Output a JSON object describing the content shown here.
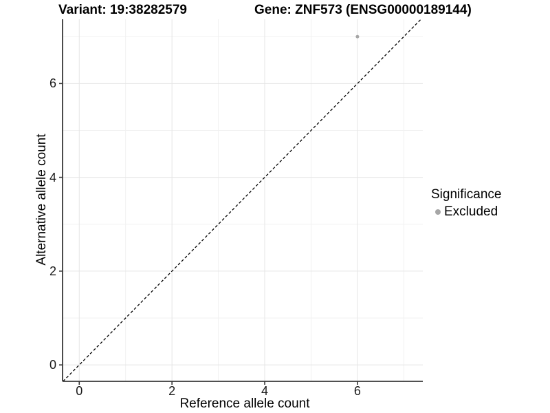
{
  "chart_data": {
    "type": "scatter",
    "title_left": "Variant: 19:38282579",
    "title_right": "Gene: ZNF573 (ENSG00000189144)",
    "xlabel": "Reference allele count",
    "ylabel": "Alternative allele count",
    "xlim": [
      -0.36,
      7.41
    ],
    "ylim": [
      -0.35,
      7.37
    ],
    "xticks": [
      0,
      2,
      4,
      6
    ],
    "yticks": [
      0,
      2,
      4,
      6
    ],
    "xtick_labels": [
      "0",
      "2",
      "4",
      "6"
    ],
    "ytick_labels": [
      "0",
      "2",
      "4",
      "6"
    ],
    "grid_major_x": [
      0,
      2,
      4,
      6
    ],
    "grid_minor_x": [
      1,
      3,
      5,
      7
    ],
    "grid_major_y": [
      0,
      2,
      4,
      6
    ],
    "grid_minor_y": [
      1,
      3,
      5,
      7
    ],
    "points": [
      {
        "x": 6,
        "y": 7,
        "series": "Excluded"
      }
    ],
    "abline": {
      "intercept": 0,
      "slope": 1,
      "style": "dashed"
    },
    "legend": {
      "title": "Significance",
      "position": "right",
      "entries": [
        {
          "label": "Excluded",
          "color": "#a6a6a6"
        }
      ]
    },
    "colors": {
      "point": "#a6a6a6",
      "grid_major": "#e5e5e5",
      "grid_minor": "#f1f1f1",
      "axis_line": "#383838",
      "abline": "#000000",
      "background": "#ffffff"
    }
  }
}
